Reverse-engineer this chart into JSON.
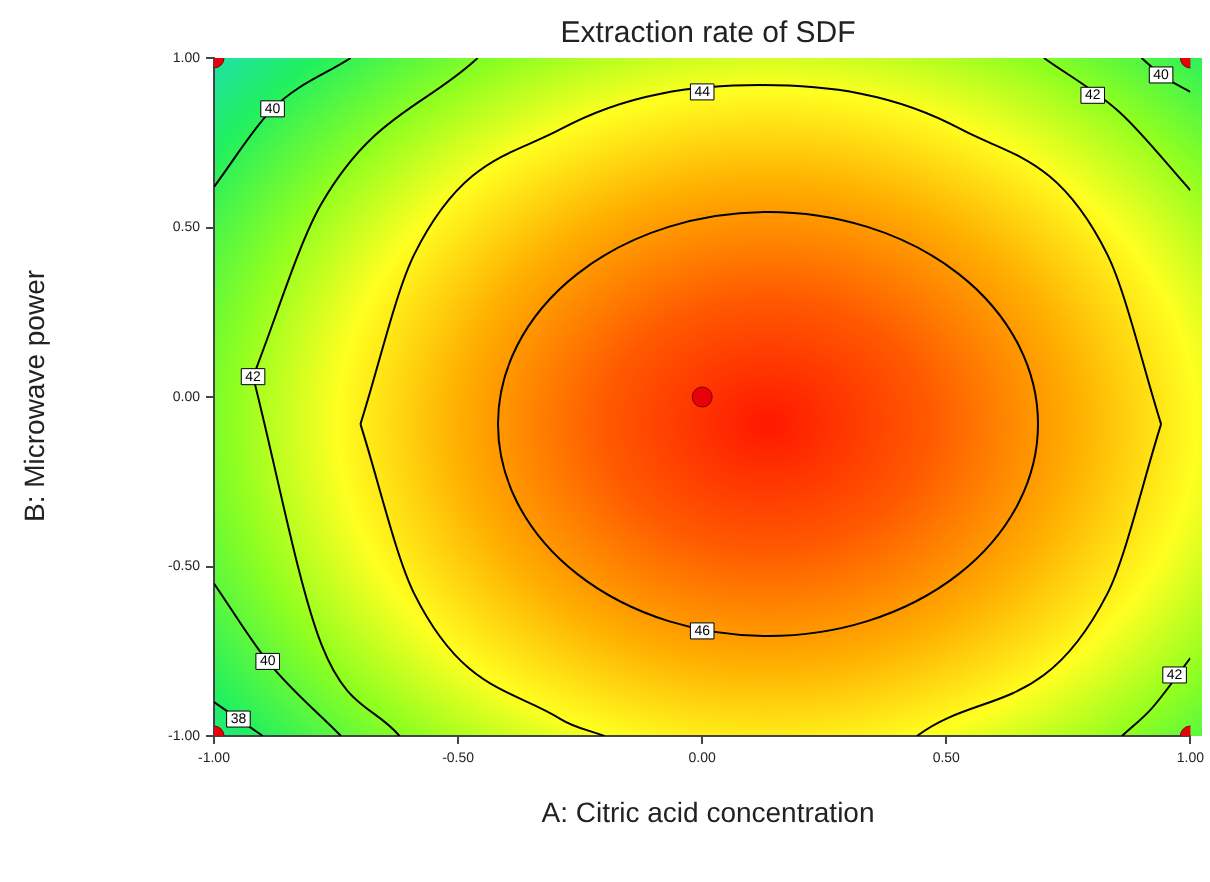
{
  "chart_data": {
    "type": "line",
    "title": "Extraction rate of SDF",
    "xlabel": "A: Citric acid concentration",
    "ylabel": "B: Microwave power",
    "xlim": [
      -1,
      1
    ],
    "ylim": [
      -1,
      1
    ],
    "xticks": [
      {
        "value": -1,
        "label": "-1.00"
      },
      {
        "value": -0.5,
        "label": "-0.50"
      },
      {
        "value": 0,
        "label": "0.00"
      },
      {
        "value": 0.5,
        "label": "0.50"
      },
      {
        "value": 1,
        "label": "1.00"
      }
    ],
    "yticks": [
      {
        "value": -1,
        "label": "-1.00"
      },
      {
        "value": -0.5,
        "label": "-0.50"
      },
      {
        "value": 0,
        "label": "0.00"
      },
      {
        "value": 0.5,
        "label": "0.50"
      },
      {
        "value": 1,
        "label": "1.00"
      }
    ],
    "grid": false,
    "legend": false,
    "marker": "none",
    "line_style": "solid",
    "annotations": [
      {
        "text": "44",
        "x": 0,
        "y": 0.9
      },
      {
        "text": "40",
        "x": -0.88,
        "y": 0.85
      },
      {
        "text": "40",
        "x": 0.94,
        "y": 0.95
      },
      {
        "text": "42",
        "x": 0.8,
        "y": 0.89
      },
      {
        "text": "42",
        "x": -0.92,
        "y": 0.06
      },
      {
        "text": "46",
        "x": 0,
        "y": -0.69
      },
      {
        "text": "40",
        "x": -0.89,
        "y": -0.78
      },
      {
        "text": "38",
        "x": -0.95,
        "y": -0.95
      },
      {
        "text": "42",
        "x": 0.97,
        "y": -0.82
      }
    ],
    "series": [
      {
        "color": "#000000",
        "x": [
          -0.7,
          -0.59,
          -0.29,
          0.12,
          0.53,
          0.83,
          0.94
        ],
        "values": [
          -0.08,
          0.42,
          0.79,
          0.92,
          0.79,
          0.42,
          -0.08
        ]
      },
      {
        "color": "#000000",
        "x": [
          -0.7,
          -0.59,
          -0.29,
          -0.2
        ],
        "values": [
          -0.08,
          -0.58,
          -0.95,
          -1
        ]
      },
      {
        "color": "#000000",
        "x": [
          0.44,
          0.83,
          0.94
        ],
        "values": [
          -1,
          -0.58,
          -0.08
        ]
      },
      {
        "color": "#000000",
        "x": [
          -0.92,
          -0.78,
          -0.46
        ],
        "values": [
          0.06,
          0.57,
          1
        ]
      },
      {
        "color": "#000000",
        "x": [
          -0.92,
          -0.78,
          -0.62
        ],
        "values": [
          0.06,
          -0.73,
          -1
        ]
      },
      {
        "color": "#000000",
        "x": [
          0.7,
          0.855,
          1
        ],
        "values": [
          1,
          0.84,
          0.61
        ]
      },
      {
        "color": "#000000",
        "x": [
          0.86,
          0.92,
          1
        ],
        "values": [
          -1,
          -0.92,
          -0.77
        ]
      },
      {
        "color": "#000000",
        "x": [
          -1,
          -0.88,
          -0.72
        ],
        "values": [
          0.62,
          0.85,
          1
        ]
      },
      {
        "color": "#000000",
        "x": [
          0.9,
          0.94,
          1
        ],
        "values": [
          1,
          0.95,
          0.9
        ]
      },
      {
        "color": "#000000",
        "x": [
          -1,
          -0.89,
          -0.74
        ],
        "values": [
          -0.55,
          -0.78,
          -1
        ]
      },
      {
        "color": "#000000",
        "x": [
          -1,
          -0.95,
          -0.9
        ],
        "values": [
          -0.9,
          -0.95,
          -1
        ]
      },
      {
        "type": "scatter",
        "marker": "circle",
        "color": "#e8000b",
        "x": [
          -1,
          1,
          -1,
          1,
          0
        ],
        "values": [
          1,
          1,
          -1,
          -1,
          0
        ]
      }
    ]
  }
}
